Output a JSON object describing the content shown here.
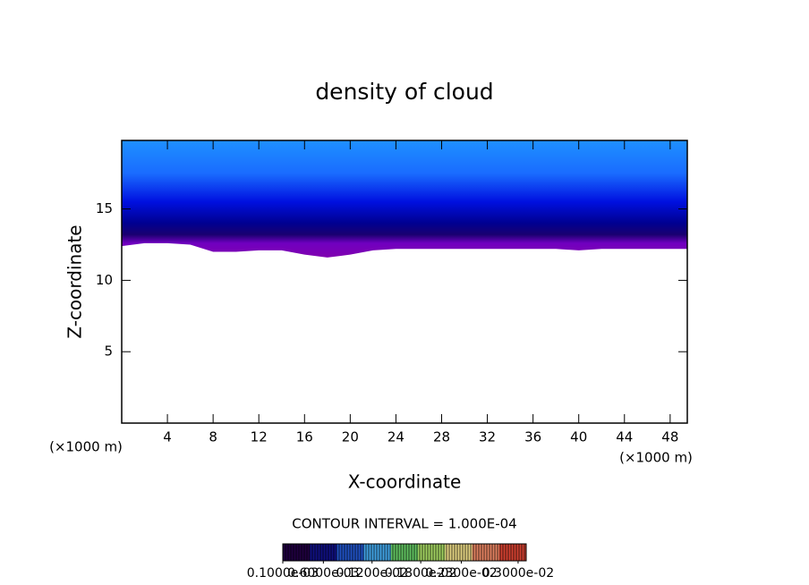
{
  "chart_data": {
    "type": "contour",
    "title": "density of cloud",
    "x_label": "X-coordinate",
    "y_label": "Z-coordinate",
    "x_unit_left": "(×1000 m)",
    "x_unit_right": "(×1000 m)",
    "contour_interval": "CONTOUR INTERVAL = 1.000E-04",
    "xlim": [
      0,
      49.5
    ],
    "ylim": [
      0,
      19.8
    ],
    "xticks": [
      4,
      8,
      12,
      16,
      20,
      24,
      28,
      32,
      36,
      40,
      44,
      48
    ],
    "yticks": [
      5,
      10,
      15
    ],
    "x": [
      0,
      2,
      4,
      6,
      8,
      10,
      12,
      14,
      16,
      18,
      20,
      22,
      24,
      26,
      28,
      30,
      32,
      34,
      36,
      38,
      40,
      42,
      44,
      46,
      48,
      49.5
    ],
    "cloud_base": [
      12.4,
      12.6,
      12.6,
      12.5,
      12.0,
      12.0,
      12.1,
      12.1,
      11.8,
      11.6,
      11.8,
      12.1,
      12.2,
      12.2,
      12.2,
      12.2,
      12.2,
      12.2,
      12.2,
      12.2,
      12.1,
      12.2,
      12.2,
      12.2,
      12.2,
      12.2
    ],
    "color_stops": [
      {
        "z": 19.8,
        "color": "#1e90ff"
      },
      {
        "z": 17.5,
        "color": "#1a6cff"
      },
      {
        "z": 15.5,
        "color": "#0010e0"
      },
      {
        "z": 14,
        "color": "#000090"
      },
      {
        "z": 13.2,
        "color": "#1a0070"
      },
      {
        "z": 12.6,
        "color": "#7000c0"
      },
      {
        "z": 11.6,
        "color": "#8000b0"
      }
    ],
    "colorbar": {
      "colors": [
        "#200040",
        "#101080",
        "#2050c0",
        "#40a0e0",
        "#60c060",
        "#a0d060",
        "#e0d080",
        "#e08060",
        "#d04030"
      ],
      "clim": [
        0.0001,
        0.0031
      ],
      "ticks": [
        {
          "value": 0.0001,
          "label": "0.1000e-03"
        },
        {
          "value": 0.0006,
          "label": "0.6000e-03"
        },
        {
          "value": 0.0012,
          "label": "0.1200e-02"
        },
        {
          "value": 0.0018,
          "label": "0.1800e-02"
        },
        {
          "value": 0.0023,
          "label": "0.2300e-02"
        },
        {
          "value": 0.003,
          "label": "0.3000e-02"
        }
      ]
    }
  }
}
